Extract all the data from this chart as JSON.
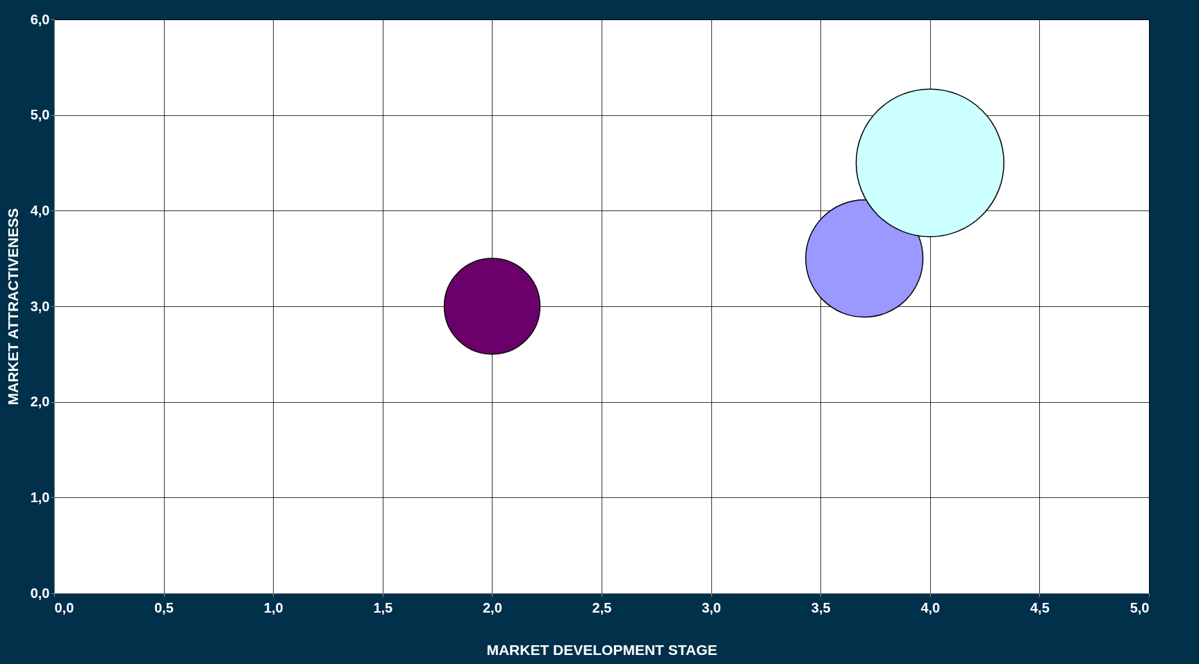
{
  "chart_data": {
    "type": "bubble",
    "xlabel": "MARKET DEVELOPMENT STAGE",
    "ylabel": "MARKET ATTRACTIVENESS",
    "x": [
      2.0,
      3.7,
      4.0
    ],
    "series": [
      {
        "colors": [
          "#6b006b",
          "#9999ff",
          "#ccffff"
        ],
        "values": [
          3.0,
          3.5,
          4.5
        ],
        "sizes": [
          0.42,
          0.63,
          1
        ]
      }
    ],
    "xlim": [
      0,
      5
    ],
    "ylim": [
      0,
      6
    ],
    "xticks": [
      {
        "value": 0,
        "label": "0,0"
      },
      {
        "value": 0.5,
        "label": "0,5"
      },
      {
        "value": 1,
        "label": "1,0"
      },
      {
        "value": 1.5,
        "label": "1,5"
      },
      {
        "value": 2,
        "label": "2,0"
      },
      {
        "value": 2.5,
        "label": "2,5"
      },
      {
        "value": 3,
        "label": "3,0"
      },
      {
        "value": 3.5,
        "label": "3,5"
      },
      {
        "value": 4,
        "label": "4,0"
      },
      {
        "value": 4.5,
        "label": "4,5"
      },
      {
        "value": 5,
        "label": "5,0"
      }
    ],
    "yticks": [
      {
        "value": 0,
        "label": "0,0"
      },
      {
        "value": 1,
        "label": "1,0"
      },
      {
        "value": 2,
        "label": "2,0"
      },
      {
        "value": 3,
        "label": "3,0"
      },
      {
        "value": 4,
        "label": "4,0"
      },
      {
        "value": 5,
        "label": "5,0"
      },
      {
        "value": 6,
        "label": "6,0"
      }
    ],
    "grid": true,
    "legend": false
  }
}
